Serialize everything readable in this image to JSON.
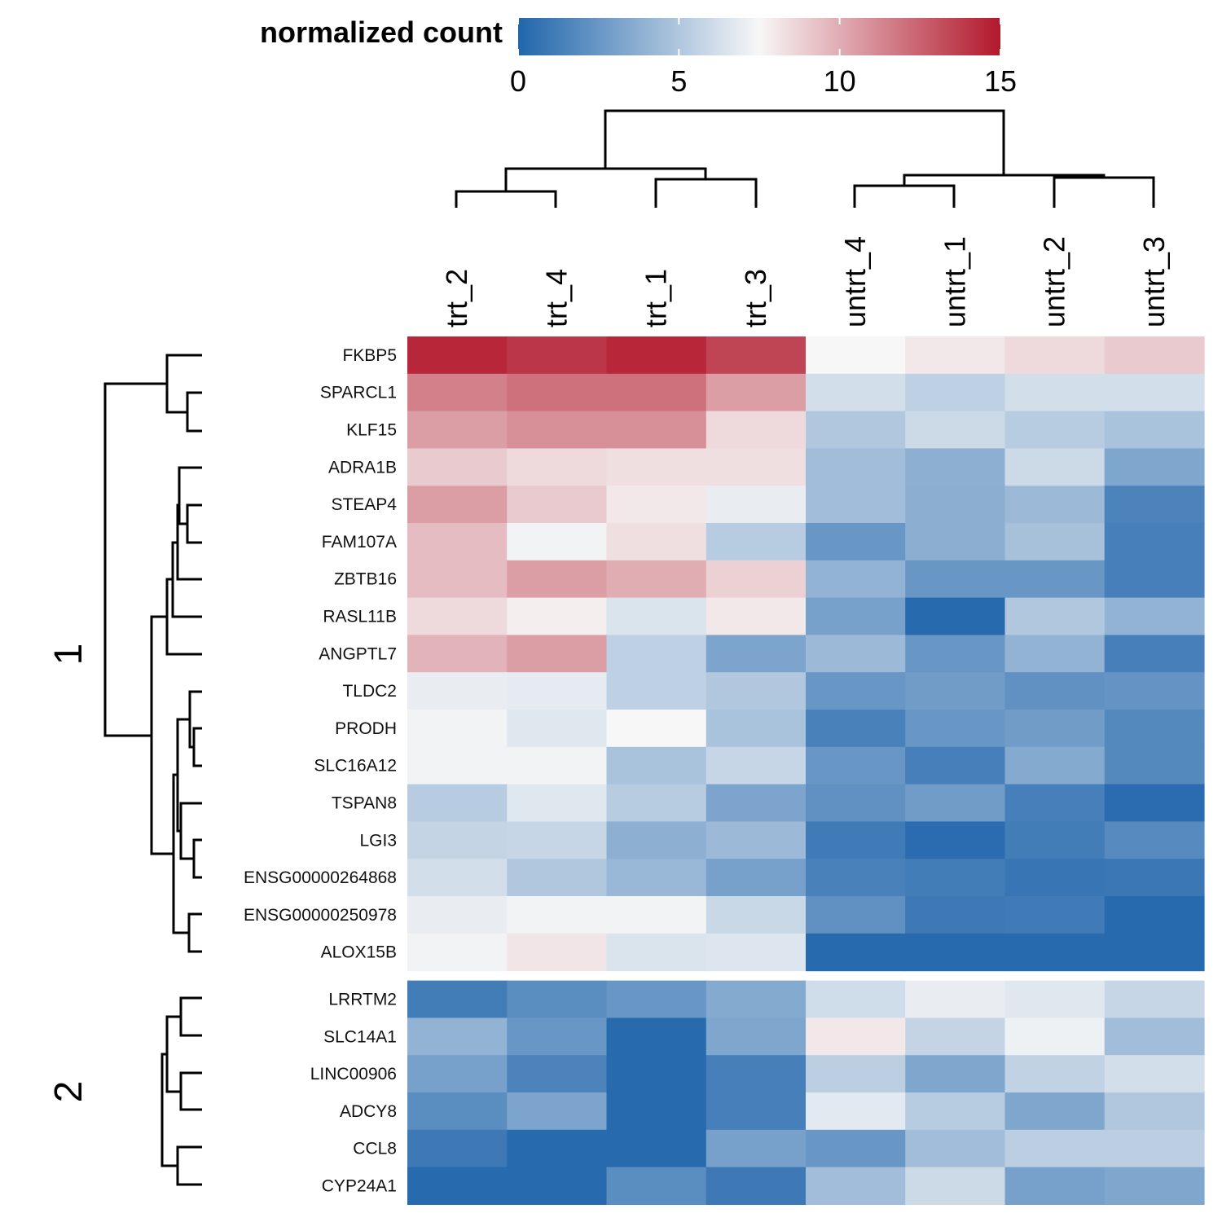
{
  "chart_data": {
    "type": "heatmap",
    "legend": {
      "title": "normalized count",
      "ticks": [
        0,
        5,
        10,
        15
      ],
      "range": [
        0,
        15
      ],
      "colors": {
        "low": "#2166ac",
        "mid": "#f7f7f7",
        "high": "#b2182b"
      }
    },
    "columns": [
      "trt_2",
      "trt_4",
      "trt_1",
      "trt_3",
      "untrt_4",
      "untrt_1",
      "untrt_2",
      "untrt_3"
    ],
    "row_clusters": [
      {
        "label": "1",
        "rows": [
          "FKBP5",
          "SPARCL1",
          "KLF15",
          "ADRA1B",
          "STEAP4",
          "FAM107A",
          "ZBTB16",
          "RASL11B",
          "ANGPTL7",
          "TLDC2",
          "PRODH",
          "SLC16A12",
          "TSPAN8",
          "LGI3",
          "ENSG00000264868",
          "ENSG00000250978",
          "ALOX15B"
        ]
      },
      {
        "label": "2",
        "rows": [
          "LRRTM2",
          "SLC14A1",
          "LINC00906",
          "ADCY8",
          "CCL8",
          "CYP24A1"
        ]
      }
    ],
    "values": [
      [
        14.5,
        14.0,
        14.5,
        13.5,
        7.5,
        8.0,
        8.5,
        9.0
      ],
      [
        11.5,
        12.0,
        12.0,
        10.5,
        6.2,
        5.5,
        6.2,
        6.2
      ],
      [
        10.5,
        11.0,
        11.0,
        8.5,
        5.0,
        6.0,
        5.3,
        4.8
      ],
      [
        9.0,
        8.5,
        8.3,
        8.3,
        4.5,
        3.8,
        6.0,
        3.3
      ],
      [
        10.5,
        9.0,
        8.0,
        7.0,
        4.5,
        3.7,
        4.3,
        1.5
      ],
      [
        9.5,
        7.3,
        8.3,
        5.3,
        2.5,
        3.7,
        4.7,
        1.3
      ],
      [
        9.5,
        10.5,
        10.0,
        8.8,
        4.0,
        2.5,
        2.5,
        1.3
      ],
      [
        8.5,
        7.8,
        6.5,
        8.0,
        3.0,
        0.2,
        5.0,
        4.0
      ],
      [
        9.8,
        10.5,
        5.5,
        3.2,
        4.3,
        2.5,
        4.0,
        1.3
      ],
      [
        7.0,
        6.9,
        5.5,
        5.0,
        2.5,
        2.8,
        2.2,
        2.4
      ],
      [
        7.3,
        6.7,
        7.5,
        4.8,
        1.4,
        2.5,
        2.8,
        1.8
      ],
      [
        7.3,
        7.3,
        4.8,
        5.8,
        2.5,
        1.3,
        3.5,
        1.8
      ],
      [
        5.3,
        6.7,
        5.3,
        3.2,
        2.2,
        2.8,
        1.3,
        0.3
      ],
      [
        5.7,
        5.8,
        3.8,
        4.3,
        1.1,
        0.3,
        1.2,
        1.9
      ],
      [
        6.2,
        5.0,
        4.2,
        3.0,
        1.4,
        1.2,
        0.8,
        0.9
      ],
      [
        7.0,
        7.3,
        7.3,
        5.9,
        2.2,
        1.0,
        1.1,
        0.2
      ],
      [
        7.3,
        8.1,
        6.5,
        6.6,
        0.2,
        0.2,
        0.2,
        0.2
      ],
      [
        1.2,
        2.0,
        2.5,
        3.5,
        6.1,
        7.0,
        6.7,
        5.8
      ],
      [
        4.0,
        2.5,
        0.2,
        3.3,
        8.0,
        5.7,
        7.2,
        4.5
      ],
      [
        3.0,
        1.5,
        0.2,
        1.3,
        5.4,
        3.3,
        5.6,
        6.2
      ],
      [
        2.0,
        3.2,
        0.2,
        1.3,
        6.8,
        5.3,
        3.3,
        5.0
      ],
      [
        1.0,
        0.2,
        0.2,
        3.0,
        2.5,
        4.5,
        5.4,
        5.4
      ],
      [
        0.2,
        0.2,
        2.0,
        1.0,
        4.5,
        6.0,
        3.0,
        3.3
      ]
    ]
  }
}
